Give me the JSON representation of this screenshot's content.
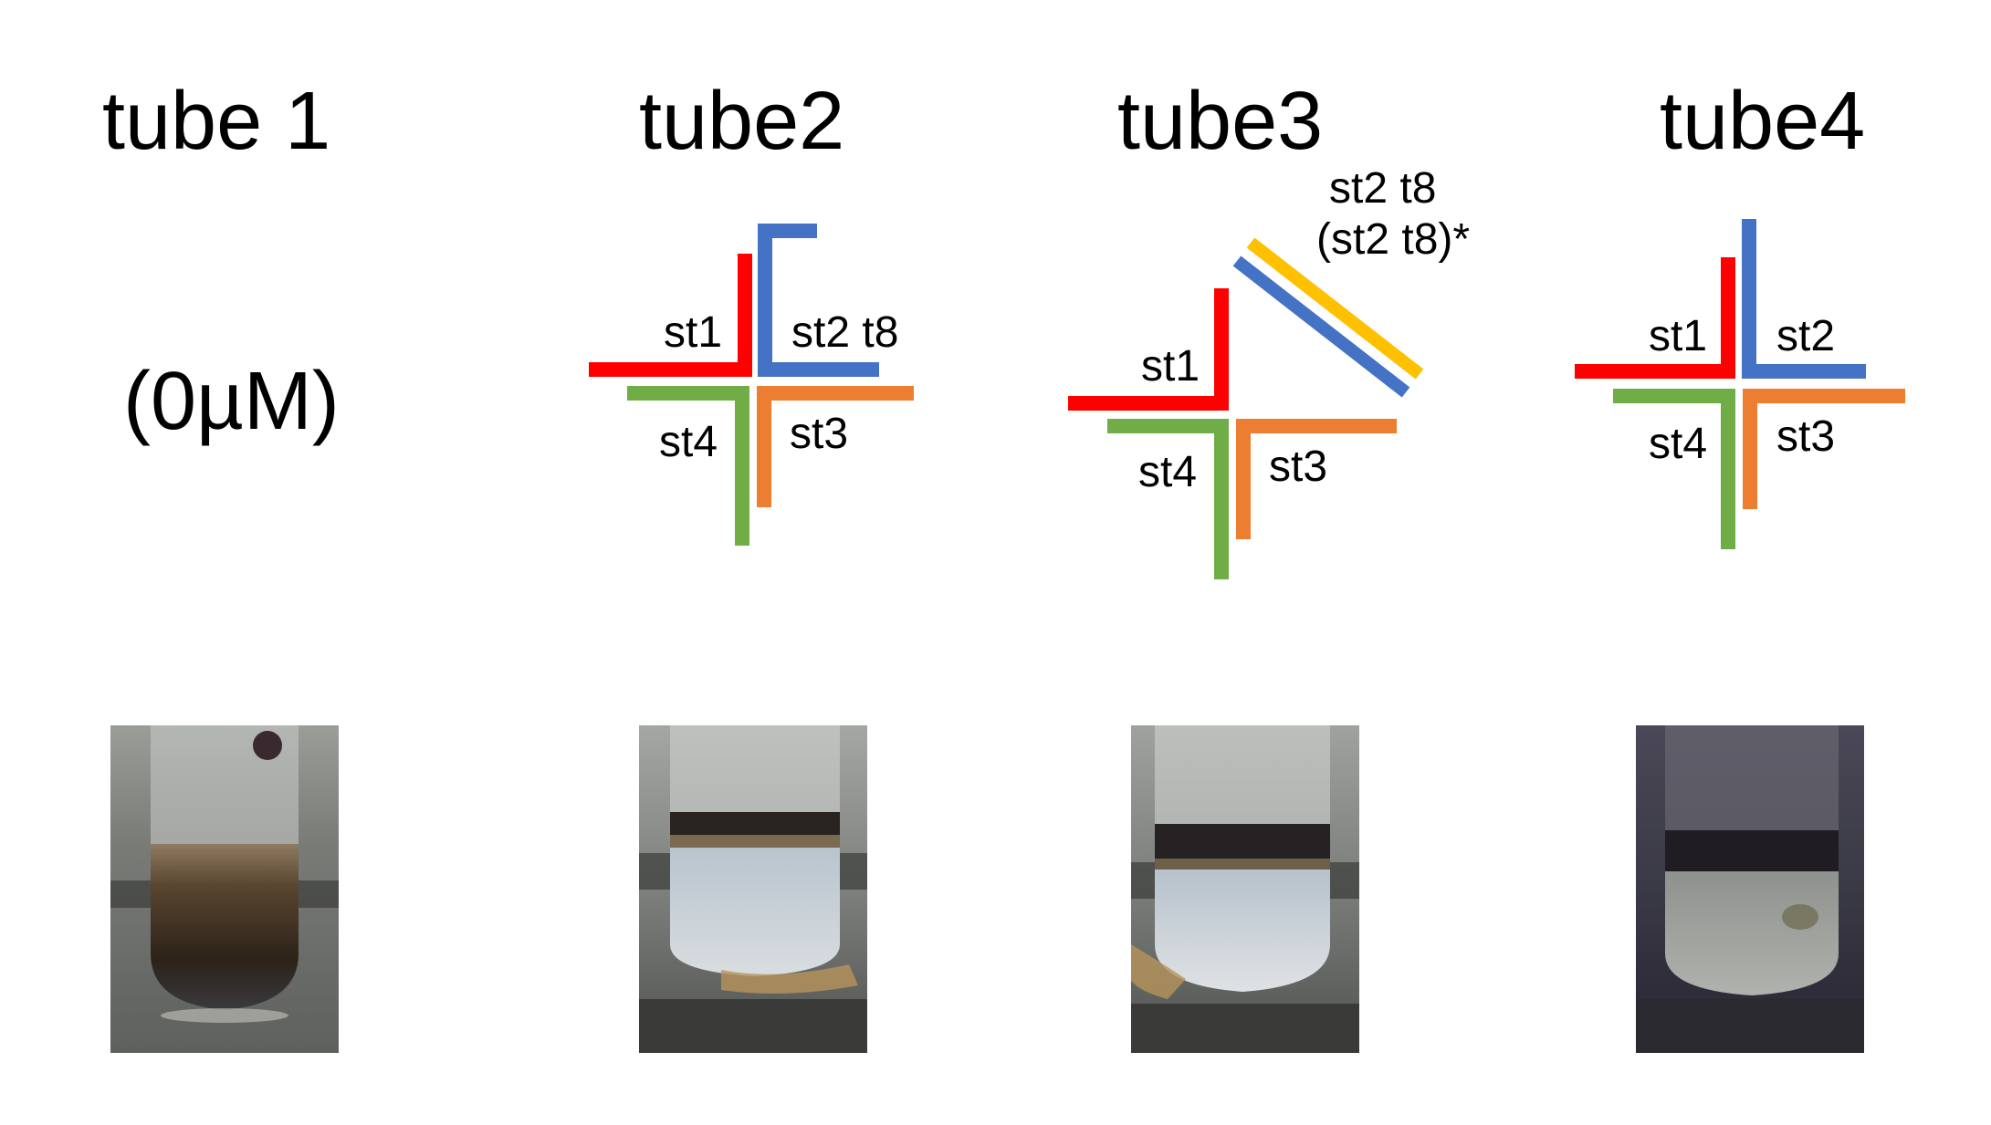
{
  "colors": {
    "st1": "#ff0000",
    "st2": "#4472c4",
    "st3": "#ed7d31",
    "st4": "#70ad47",
    "st2_t8_complement": "#ffc000"
  },
  "tubes": [
    {
      "title": "tube 1",
      "subtitle": "(0µM)",
      "photo": "photo of tube 1"
    },
    {
      "title": "tube2",
      "labels": {
        "st1": "st1",
        "st2": "st2 t8",
        "st3": "st3",
        "st4": "st4"
      },
      "photo": "photo of tube 2"
    },
    {
      "title": "tube3",
      "labels": {
        "st1": "st1",
        "st3": "st3",
        "st4": "st4",
        "duplex_line1": "st2 t8",
        "duplex_line2": "(st2 t8)*"
      },
      "photo": "photo of tube 3"
    },
    {
      "title": "tube4",
      "labels": {
        "st1": "st1",
        "st2": "st2",
        "st3": "st3",
        "st4": "st4"
      },
      "photo": "photo of tube 4"
    }
  ]
}
